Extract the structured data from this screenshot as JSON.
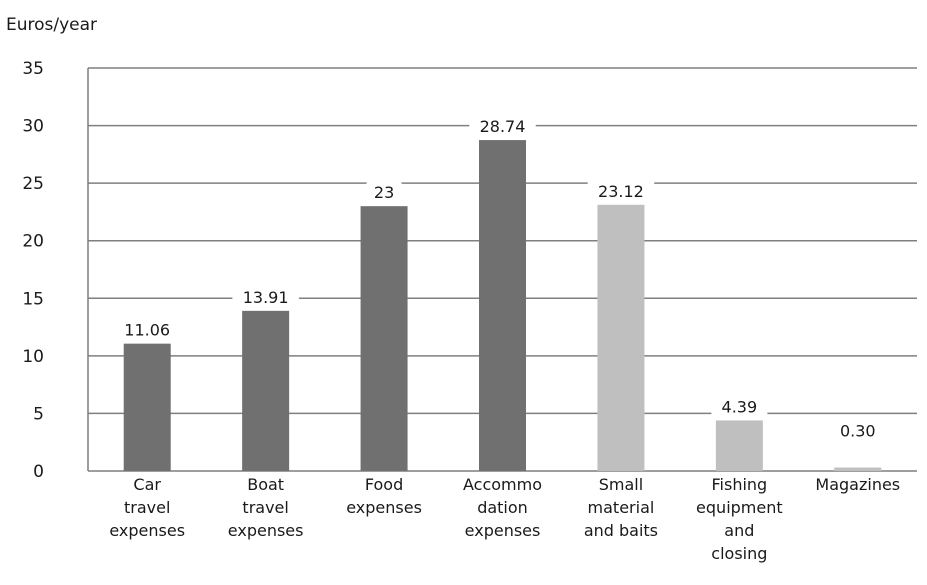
{
  "chart_data": {
    "type": "bar",
    "ylabel": "Euros/year",
    "ylim": [
      0,
      35
    ],
    "yticks": [
      "0",
      "5",
      "10",
      "15",
      "20",
      "25",
      "30",
      "35"
    ],
    "grid": true,
    "categories": [
      "Car travel expenses",
      "Boat travel expenses",
      "Food expenses",
      "Accommodation expenses",
      "Small material and baits",
      "Fishing equipment and closing",
      "Magazines"
    ],
    "category_label_lines": [
      [
        "Car",
        "travel",
        "expenses"
      ],
      [
        "Boat",
        "travel",
        "expenses"
      ],
      [
        "Food",
        "expenses"
      ],
      [
        "Accommo",
        "dation",
        "expenses"
      ],
      [
        "Small",
        "material",
        "and baits"
      ],
      [
        "Fishing",
        "equipment",
        "and",
        "closing"
      ],
      [
        "Magazines"
      ]
    ],
    "values": [
      11.06,
      13.91,
      23,
      28.74,
      23.12,
      4.39,
      0.3
    ],
    "value_labels": [
      "11.06",
      "13.91",
      "23",
      "28.74",
      "23.12",
      "4.39",
      "0.30"
    ],
    "bar_colors": [
      "#707070",
      "#707070",
      "#707070",
      "#707070",
      "#bfbfbf",
      "#bfbfbf",
      "#bfbfbf"
    ]
  }
}
